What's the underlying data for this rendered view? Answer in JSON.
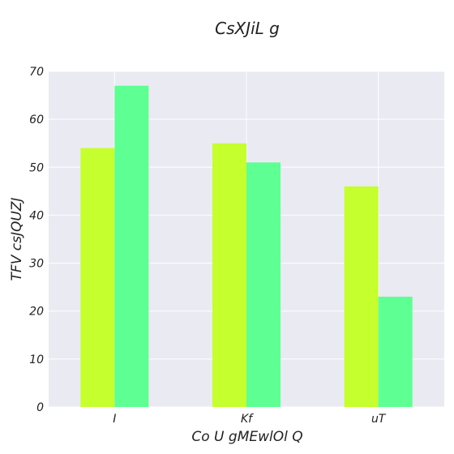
{
  "chart_data": {
    "type": "bar",
    "title": "CsXJiL g",
    "xlabel": "Co U gMEwlOl Q",
    "ylabel": "TFV csJQUZJ",
    "categories": [
      "I",
      "Kf",
      "uT"
    ],
    "series": [
      {
        "color": "#c5ff2e",
        "values": [
          54,
          55,
          46
        ]
      },
      {
        "color": "#5eff93",
        "values": [
          67,
          51,
          23
        ]
      }
    ],
    "ylim": [
      0,
      70
    ],
    "yticks": [
      0,
      10,
      20,
      30,
      40,
      50,
      60,
      70
    ],
    "grid": true,
    "background": "#eaeaf2"
  }
}
